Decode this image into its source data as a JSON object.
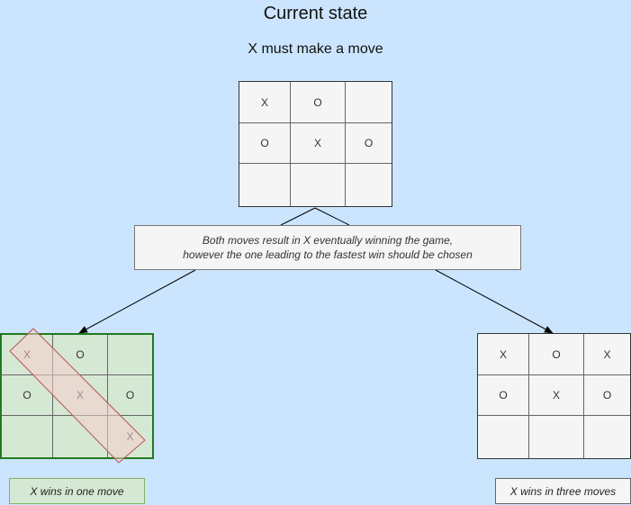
{
  "title": "Current state",
  "subtitle": "X must make a move",
  "current_board": [
    [
      "X",
      "O",
      ""
    ],
    [
      "O",
      "X",
      "O"
    ],
    [
      "",
      "",
      ""
    ]
  ],
  "note": {
    "line1": "Both moves result in X eventually winning the game,",
    "line2": "however the one leading to the fastest win should be chosen"
  },
  "left_option": {
    "board": [
      [
        "X",
        "O",
        ""
      ],
      [
        "O",
        "X",
        "O"
      ],
      [
        "",
        "",
        "X"
      ]
    ],
    "caption": "X wins in one move"
  },
  "right_option": {
    "board": [
      [
        "X",
        "O",
        "X"
      ],
      [
        "O",
        "X",
        "O"
      ],
      [
        "",
        "",
        ""
      ]
    ],
    "caption": "X wins in three moves"
  },
  "colors": {
    "background": "#cce5ff",
    "win_fill": "#d5e8d4",
    "win_border": "#217a21",
    "highlight_fill": "#f8cecc",
    "highlight_stroke": "#b85450",
    "neutral_fill": "#f5f5f5"
  }
}
